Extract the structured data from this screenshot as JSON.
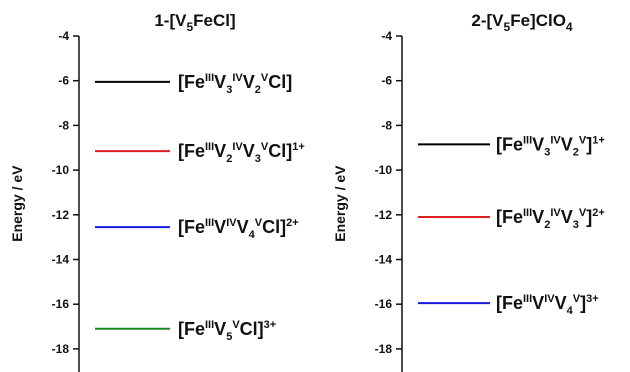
{
  "chart_data": [
    {
      "type": "energy-level-diagram",
      "title": {
        "base": "1-[V",
        "sub": "5",
        "rest": "FeCl]"
      },
      "ylabel": "Energy / eV",
      "ylim": [
        -19,
        -4
      ],
      "yticks": [
        -4,
        -6,
        -8,
        -10,
        -12,
        -14,
        -16,
        -18
      ],
      "levels": [
        {
          "energy": -6.05,
          "color": "#000000",
          "label": [
            {
              "t": "[Fe"
            },
            {
              "t": "III",
              "s": "sup"
            },
            {
              "t": "V"
            },
            {
              "t": "3",
              "s": "sub"
            },
            {
              "t": "IV",
              "s": "sup"
            },
            {
              "t": "V"
            },
            {
              "t": "2",
              "s": "sub"
            },
            {
              "t": "V",
              "s": "sup"
            },
            {
              "t": "Cl]"
            }
          ]
        },
        {
          "energy": -9.15,
          "color": "#e02020",
          "label": [
            {
              "t": "[Fe"
            },
            {
              "t": "III",
              "s": "sup"
            },
            {
              "t": "V"
            },
            {
              "t": "2",
              "s": "sub"
            },
            {
              "t": "IV",
              "s": "sup"
            },
            {
              "t": "V"
            },
            {
              "t": "3",
              "s": "sub"
            },
            {
              "t": "V",
              "s": "sup"
            },
            {
              "t": "Cl]"
            },
            {
              "t": "1+",
              "s": "sup"
            }
          ]
        },
        {
          "energy": -12.55,
          "color": "#1a1adf",
          "label": [
            {
              "t": "[Fe"
            },
            {
              "t": "III",
              "s": "sup"
            },
            {
              "t": "V"
            },
            {
              "t": "IV",
              "s": "sup"
            },
            {
              "t": "V"
            },
            {
              "t": "4",
              "s": "sub"
            },
            {
              "t": "V",
              "s": "sup"
            },
            {
              "t": "Cl]"
            },
            {
              "t": "2+",
              "s": "sup"
            }
          ]
        },
        {
          "energy": -17.1,
          "color": "#1a8a1a",
          "label": [
            {
              "t": "[Fe"
            },
            {
              "t": "III",
              "s": "sup"
            },
            {
              "t": "V"
            },
            {
              "t": "5",
              "s": "sub"
            },
            {
              "t": "V",
              "s": "sup"
            },
            {
              "t": "Cl]"
            },
            {
              "t": "3+",
              "s": "sup"
            }
          ]
        }
      ]
    },
    {
      "type": "energy-level-diagram",
      "title": {
        "base": "2-[V",
        "sub": "5",
        "rest": "Fe]ClO",
        "sub2": "4"
      },
      "ylabel": "Energy / eV",
      "ylim": [
        -19,
        -4
      ],
      "yticks": [
        -4,
        -6,
        -8,
        -10,
        -12,
        -14,
        -16,
        -18
      ],
      "levels": [
        {
          "energy": -8.85,
          "color": "#000000",
          "label": [
            {
              "t": "[Fe"
            },
            {
              "t": "III",
              "s": "sup"
            },
            {
              "t": "V"
            },
            {
              "t": "3",
              "s": "sub"
            },
            {
              "t": "IV",
              "s": "sup"
            },
            {
              "t": "V"
            },
            {
              "t": "2",
              "s": "sub"
            },
            {
              "t": "V",
              "s": "sup"
            },
            {
              "t": "]"
            },
            {
              "t": "1+",
              "s": "sup"
            }
          ]
        },
        {
          "energy": -12.1,
          "color": "#e02020",
          "label": [
            {
              "t": "[Fe"
            },
            {
              "t": "III",
              "s": "sup"
            },
            {
              "t": "V"
            },
            {
              "t": "2",
              "s": "sub"
            },
            {
              "t": "IV",
              "s": "sup"
            },
            {
              "t": "V"
            },
            {
              "t": "3",
              "s": "sub"
            },
            {
              "t": "V",
              "s": "sup"
            },
            {
              "t": "]"
            },
            {
              "t": "2+",
              "s": "sup"
            }
          ]
        },
        {
          "energy": -15.95,
          "color": "#1a1adf",
          "label": [
            {
              "t": "[Fe"
            },
            {
              "t": "III",
              "s": "sup"
            },
            {
              "t": "V"
            },
            {
              "t": "IV",
              "s": "sup"
            },
            {
              "t": "V"
            },
            {
              "t": "4",
              "s": "sub"
            },
            {
              "t": "V",
              "s": "sup"
            },
            {
              "t": "]"
            },
            {
              "t": "3+",
              "s": "sup"
            }
          ]
        }
      ]
    }
  ]
}
